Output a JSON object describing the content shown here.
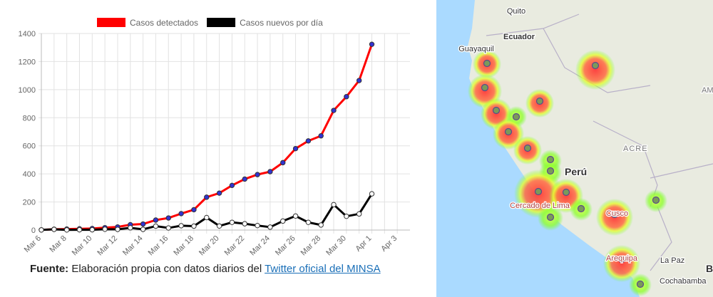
{
  "chart_data": {
    "type": "line",
    "categories": [
      "Mar 6",
      null,
      "Mar 8",
      null,
      "Mar 10",
      null,
      "Mar 12",
      null,
      "Mar 14",
      null,
      "Mar 16",
      null,
      "Mar 18",
      null,
      "Mar 20",
      null,
      "Mar 22",
      null,
      "Mar 24",
      null,
      "Mar 26",
      null,
      "Mar 28",
      null,
      "Mar 30",
      null,
      "Apr 1",
      null,
      "Apr 3"
    ],
    "series": [
      {
        "name": "Casos detectados",
        "color": "#ff0000",
        "point_color": "#3232d2",
        "values": [
          1,
          6,
          7,
          9,
          11,
          17,
          22,
          38,
          43,
          71,
          86,
          117,
          145,
          234,
          263,
          318,
          363,
          395,
          416,
          480,
          580,
          635,
          671,
          852,
          950,
          1065,
          1323,
          null,
          null
        ]
      },
      {
        "name": "Casos nuevos por día",
        "color": "#000000",
        "point_color": "#ffffff",
        "values": [
          1,
          5,
          1,
          2,
          2,
          6,
          5,
          16,
          5,
          28,
          15,
          31,
          28,
          89,
          29,
          55,
          45,
          32,
          21,
          64,
          100,
          55,
          36,
          181,
          98,
          115,
          258,
          null,
          null
        ]
      }
    ],
    "ylim": [
      0,
      1400
    ],
    "yticks": [
      0,
      200,
      400,
      600,
      800,
      1000,
      1200,
      1400
    ],
    "grid": true,
    "legend": "top"
  },
  "caption": {
    "label": "Fuente:",
    "text": "Elaboración propia con datos diarios del",
    "link": "Twitter oficial del MINSA"
  },
  "map": {
    "labels": [
      "Quito",
      "Ecuador",
      "Guayaquil",
      "Perú",
      "Cercado de Lima",
      "ACRE",
      "La Paz",
      "Cochabamba",
      "Arequipa",
      "Cusco",
      "AMA",
      "B"
    ]
  }
}
